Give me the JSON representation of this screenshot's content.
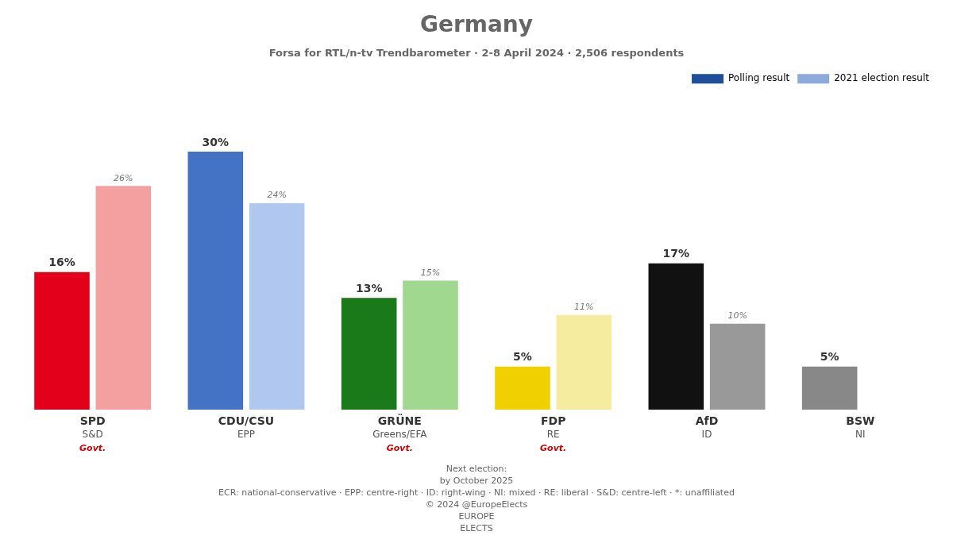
{
  "chart_data": {
    "type": "bar",
    "title": "Germany",
    "subtitle": "Forsa for RTL/n-tv Trendbarometer · 2-8 April 2024 · 2,506 respondents",
    "categories": [
      "SPD",
      "CDU/CSU",
      "GRÜNE",
      "FDP",
      "AfD",
      "BSW"
    ],
    "series": [
      {
        "name": "Polling result",
        "color": "#1f4e9a",
        "colors": [
          "#e2001a",
          "#4472c4",
          "#1a7a1a",
          "#f0d000",
          "#111111",
          "#888888"
        ],
        "values": [
          16,
          30,
          13,
          5,
          17,
          5
        ],
        "value_labels": [
          "16%",
          "30%",
          "13%",
          "5%",
          "17%",
          "5%"
        ]
      },
      {
        "name": "2021 election result",
        "color": "#8eaadb",
        "colors": [
          "#f4a0a0",
          "#b0c8f0",
          "#a0d890",
          "#f5eca0",
          "#999999",
          null
        ],
        "values": [
          26,
          24,
          15,
          11,
          10,
          null
        ],
        "value_labels": [
          "26%",
          "24%",
          "15%",
          "11%",
          "10%",
          null
        ]
      }
    ],
    "ylim": [
      0,
      37
    ],
    "grid": false,
    "legend": "upper right",
    "data_labels": true,
    "tick_labels": false,
    "annotations": [
      {
        "text": "S&D",
        "category": "SPD"
      },
      {
        "text": "Govt.",
        "category": "SPD",
        "color": "#cc0000"
      },
      {
        "text": "EPP",
        "category": "CDU/CSU"
      },
      {
        "text": "Greens/EFA",
        "category": "GRÜNE"
      },
      {
        "text": "Govt.",
        "category": "GRÜNE",
        "color": "#cc0000"
      },
      {
        "text": "RE",
        "category": "FDP"
      },
      {
        "text": "Govt.",
        "category": "FDP",
        "color": "#cc0000"
      },
      {
        "text": "ID",
        "category": "AfD"
      },
      {
        "text": "NI",
        "category": "BSW"
      },
      {
        "text": "Next election:"
      },
      {
        "text": "by October 2025"
      },
      {
        "text": "ECR: national-conservative · EPP: centre-right · ID: right-wing · NI: mixed · RE: liberal · S&D: centre-left · *: unaffiliated"
      },
      {
        "text": "© 2024 @EuropeElects"
      },
      {
        "text": "EUROPE"
      },
      {
        "text": "ELECTS"
      }
    ]
  }
}
